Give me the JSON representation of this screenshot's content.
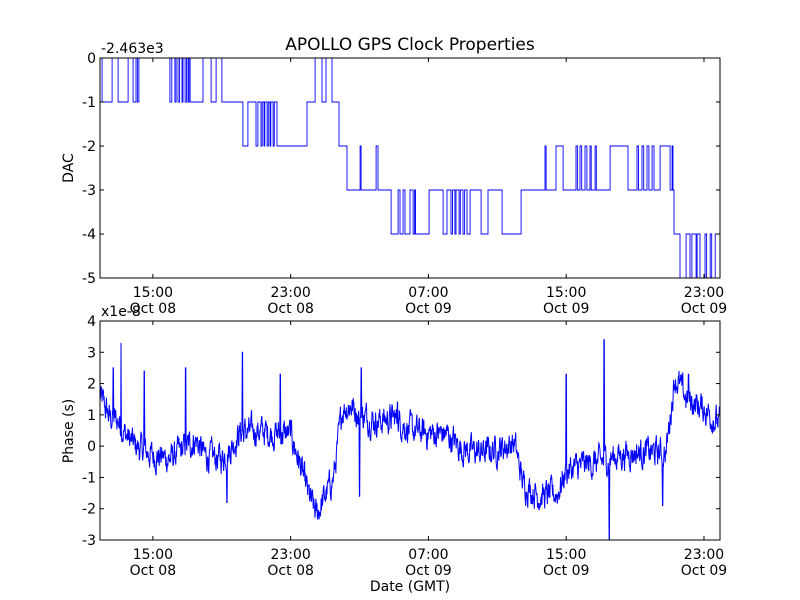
{
  "chart_data": [
    {
      "type": "line",
      "title": "APOLLO GPS Clock Properties",
      "ylabel": "DAC",
      "xlabel": "",
      "offset_label": "-2.463e3",
      "x_units": "hours since Oct 08 00:00 GMT",
      "xlim": [
        11.93,
        47.93
      ],
      "ylim": [
        -5,
        0
      ],
      "yticks": [
        "0",
        "-1",
        "-2",
        "-3",
        "-4",
        "-5"
      ],
      "xticks": [
        {
          "h": 15,
          "time": "15:00",
          "date": "Oct 08"
        },
        {
          "h": 23,
          "time": "23:00",
          "date": "Oct 08"
        },
        {
          "h": 31,
          "time": "07:00",
          "date": "Oct 09"
        },
        {
          "h": 39,
          "time": "15:00",
          "date": "Oct 09"
        },
        {
          "h": 47,
          "time": "23:00",
          "date": "Oct 09"
        }
      ],
      "color": "#0000ff",
      "steps": [
        [
          11.93,
          0
        ],
        [
          12.05,
          -1
        ],
        [
          12.63,
          0
        ],
        [
          12.98,
          -1
        ],
        [
          13.56,
          0
        ],
        [
          13.85,
          -1
        ],
        [
          14.02,
          0
        ],
        [
          14.1,
          -1
        ],
        [
          14.19,
          0
        ],
        [
          15.99,
          -1
        ],
        [
          16.1,
          0
        ],
        [
          16.28,
          -1
        ],
        [
          16.35,
          0
        ],
        [
          16.46,
          -1
        ],
        [
          16.55,
          0
        ],
        [
          16.69,
          -1
        ],
        [
          16.75,
          0
        ],
        [
          16.87,
          -1
        ],
        [
          16.95,
          0
        ],
        [
          17.04,
          -1
        ],
        [
          17.1,
          0
        ],
        [
          17.16,
          -1
        ],
        [
          17.91,
          0
        ],
        [
          18.38,
          -1
        ],
        [
          18.67,
          0
        ],
        [
          19.01,
          -1
        ],
        [
          20.23,
          -2
        ],
        [
          20.52,
          -1
        ],
        [
          20.99,
          -2
        ],
        [
          21.1,
          -1
        ],
        [
          21.28,
          -2
        ],
        [
          21.35,
          -1
        ],
        [
          21.45,
          -2
        ],
        [
          21.5,
          -1
        ],
        [
          21.63,
          -2
        ],
        [
          21.7,
          -1
        ],
        [
          21.8,
          -2
        ],
        [
          21.85,
          -1
        ],
        [
          21.98,
          -2
        ],
        [
          22.05,
          -1
        ],
        [
          22.21,
          -2
        ],
        [
          23.95,
          -1
        ],
        [
          24.42,
          0
        ],
        [
          24.82,
          -1
        ],
        [
          25.05,
          0
        ],
        [
          25.4,
          -1
        ],
        [
          25.81,
          -2
        ],
        [
          26.27,
          -3
        ],
        [
          27.03,
          -2
        ],
        [
          27.09,
          -3
        ],
        [
          27.96,
          -2
        ],
        [
          28.07,
          -3
        ],
        [
          28.83,
          -4
        ],
        [
          29.24,
          -3
        ],
        [
          29.35,
          -4
        ],
        [
          29.53,
          -3
        ],
        [
          29.64,
          -4
        ],
        [
          29.93,
          -3
        ],
        [
          30.11,
          -4
        ],
        [
          30.2,
          -3
        ],
        [
          30.25,
          -4
        ],
        [
          31.04,
          -3
        ],
        [
          31.85,
          -4
        ],
        [
          32.08,
          -3
        ],
        [
          32.31,
          -4
        ],
        [
          32.4,
          -3
        ],
        [
          32.54,
          -4
        ],
        [
          32.6,
          -3
        ],
        [
          32.78,
          -4
        ],
        [
          32.85,
          -3
        ],
        [
          33.01,
          -4
        ],
        [
          33.1,
          -3
        ],
        [
          33.24,
          -4
        ],
        [
          33.42,
          -3
        ],
        [
          34.06,
          -4
        ],
        [
          34.46,
          -3
        ],
        [
          35.28,
          -4
        ],
        [
          36.38,
          -3
        ],
        [
          37.77,
          -2
        ],
        [
          37.83,
          -3
        ],
        [
          38.41,
          -2
        ],
        [
          38.82,
          -3
        ],
        [
          39.57,
          -2
        ],
        [
          39.65,
          -3
        ],
        [
          39.8,
          -2
        ],
        [
          39.9,
          -3
        ],
        [
          40.09,
          -2
        ],
        [
          40.2,
          -3
        ],
        [
          40.38,
          -2
        ],
        [
          40.45,
          -3
        ],
        [
          40.68,
          -2
        ],
        [
          40.75,
          -3
        ],
        [
          41.55,
          -2
        ],
        [
          42.59,
          -3
        ],
        [
          43.11,
          -2
        ],
        [
          43.2,
          -3
        ],
        [
          43.4,
          -2
        ],
        [
          43.5,
          -3
        ],
        [
          43.69,
          -2
        ],
        [
          43.8,
          -3
        ],
        [
          43.99,
          -2
        ],
        [
          44.1,
          -3
        ],
        [
          44.45,
          -2
        ],
        [
          45.03,
          -3
        ],
        [
          45.15,
          -2
        ],
        [
          45.2,
          -3
        ],
        [
          45.26,
          -4
        ],
        [
          45.61,
          -5
        ],
        [
          45.96,
          -4
        ],
        [
          46.19,
          -5
        ],
        [
          46.3,
          -4
        ],
        [
          46.54,
          -5
        ],
        [
          46.6,
          -4
        ],
        [
          46.77,
          -5
        ],
        [
          47.06,
          -4
        ],
        [
          47.15,
          -5
        ],
        [
          47.36,
          -4
        ],
        [
          47.45,
          -5
        ],
        [
          47.65,
          -4
        ],
        [
          47.93,
          -4
        ]
      ]
    },
    {
      "type": "line",
      "title": "",
      "ylabel": "Phase (s)",
      "xlabel": "Date (GMT)",
      "offset_label": "x1e-8",
      "x_units": "hours since Oct 08 00:00 GMT",
      "xlim": [
        11.93,
        47.93
      ],
      "ylim": [
        -3,
        4
      ],
      "yticks": [
        "4",
        "3",
        "2",
        "1",
        "0",
        "-1",
        "-2",
        "-3"
      ],
      "xticks": [
        {
          "h": 15,
          "time": "15:00",
          "date": "Oct 08"
        },
        {
          "h": 23,
          "time": "23:00",
          "date": "Oct 08"
        },
        {
          "h": 31,
          "time": "07:00",
          "date": "Oct 09"
        },
        {
          "h": 39,
          "time": "15:00",
          "date": "Oct 09"
        },
        {
          "h": 47,
          "time": "23:00",
          "date": "Oct 09"
        }
      ],
      "color": "#0000ff",
      "noise_amplitude": 0.45,
      "trend": [
        [
          11.93,
          1.6
        ],
        [
          12.5,
          0.9
        ],
        [
          13,
          0.8
        ],
        [
          13.5,
          0.3
        ],
        [
          14,
          0.0
        ],
        [
          15,
          -0.3
        ],
        [
          16,
          -0.4
        ],
        [
          17,
          0.0
        ],
        [
          17.5,
          0.2
        ],
        [
          18,
          -0.3
        ],
        [
          19,
          -0.4
        ],
        [
          19.5,
          -0.1
        ],
        [
          20,
          0.4
        ],
        [
          21,
          0.5
        ],
        [
          22,
          0.4
        ],
        [
          23,
          0.4
        ],
        [
          23.5,
          -0.5
        ],
        [
          24,
          -1.5
        ],
        [
          24.5,
          -2.2
        ],
        [
          25,
          -1.6
        ],
        [
          25.5,
          -1.0
        ],
        [
          26,
          1.2
        ],
        [
          26.5,
          1.3
        ],
        [
          27,
          1.0
        ],
        [
          28,
          0.8
        ],
        [
          29,
          0.9
        ],
        [
          30,
          0.5
        ],
        [
          31,
          0.4
        ],
        [
          32,
          0.4
        ],
        [
          33,
          -0.1
        ],
        [
          34,
          -0.2
        ],
        [
          35,
          -0.1
        ],
        [
          36,
          0.1
        ],
        [
          36.5,
          -1.2
        ],
        [
          37.5,
          -1.6
        ],
        [
          38.5,
          -1.5
        ],
        [
          39,
          -0.8
        ],
        [
          40,
          -0.6
        ],
        [
          41,
          -0.5
        ],
        [
          42,
          -0.3
        ],
        [
          43,
          -0.2
        ],
        [
          44,
          -0.2
        ],
        [
          44.8,
          -0.2
        ],
        [
          45.3,
          2.2
        ],
        [
          46,
          1.5
        ],
        [
          47,
          1.2
        ],
        [
          47.93,
          0.7
        ]
      ],
      "spikes": [
        [
          12.7,
          2.5
        ],
        [
          13.15,
          3.3
        ],
        [
          14.5,
          2.4
        ],
        [
          16.9,
          2.5
        ],
        [
          19.3,
          -1.8
        ],
        [
          20.2,
          3.0
        ],
        [
          22.4,
          2.3
        ],
        [
          27.0,
          -1.6
        ],
        [
          27.1,
          2.5
        ],
        [
          29.2,
          1.4
        ],
        [
          39.0,
          2.3
        ],
        [
          41.2,
          3.4
        ],
        [
          41.5,
          -3.0
        ],
        [
          44.6,
          -1.9
        ],
        [
          46.1,
          2.3
        ]
      ]
    }
  ]
}
